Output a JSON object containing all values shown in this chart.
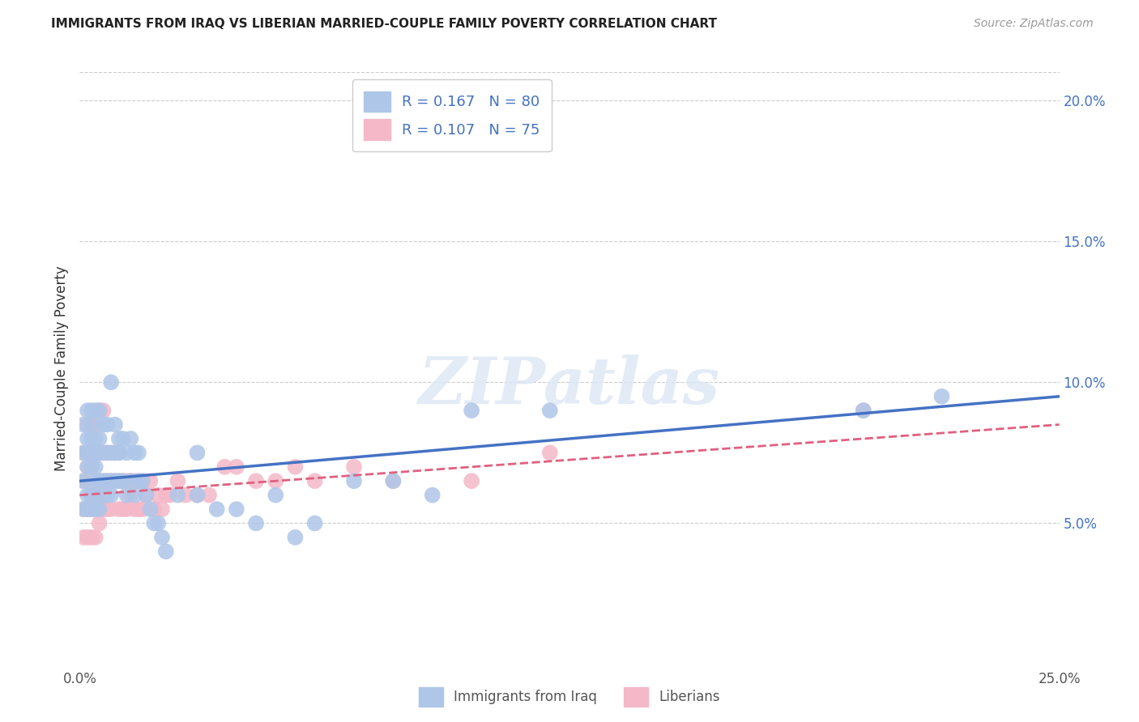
{
  "title": "IMMIGRANTS FROM IRAQ VS LIBERIAN MARRIED-COUPLE FAMILY POVERTY CORRELATION CHART",
  "source": "Source: ZipAtlas.com",
  "ylabel": "Married-Couple Family Poverty",
  "right_yticks": [
    "5.0%",
    "10.0%",
    "15.0%",
    "20.0%"
  ],
  "right_ytick_vals": [
    0.05,
    0.1,
    0.15,
    0.2
  ],
  "xlim": [
    0.0,
    0.25
  ],
  "ylim": [
    0.0,
    0.21
  ],
  "series1_color": "#aec6e8",
  "series2_color": "#f4b8c8",
  "trendline1_color": "#4472c4",
  "trendline2_color": "#e06080",
  "watermark": "ZIPatlas",
  "legend_label1": "R = 0.167   N = 80",
  "legend_label2": "R = 0.107   N = 75",
  "legend_label_bottom1": "Immigrants from Iraq",
  "legend_label_bottom2": "Liberians",
  "iraq_x": [
    0.001,
    0.001,
    0.001,
    0.001,
    0.002,
    0.002,
    0.002,
    0.002,
    0.002,
    0.002,
    0.003,
    0.003,
    0.003,
    0.003,
    0.003,
    0.003,
    0.003,
    0.004,
    0.004,
    0.004,
    0.004,
    0.004,
    0.004,
    0.005,
    0.005,
    0.005,
    0.005,
    0.005,
    0.005,
    0.006,
    0.006,
    0.006,
    0.006,
    0.007,
    0.007,
    0.007,
    0.007,
    0.008,
    0.008,
    0.008,
    0.008,
    0.009,
    0.009,
    0.009,
    0.01,
    0.01,
    0.01,
    0.011,
    0.011,
    0.012,
    0.012,
    0.013,
    0.013,
    0.014,
    0.014,
    0.015,
    0.015,
    0.016,
    0.017,
    0.018,
    0.019,
    0.02,
    0.021,
    0.022,
    0.025,
    0.03,
    0.035,
    0.04,
    0.045,
    0.05,
    0.055,
    0.06,
    0.07,
    0.08,
    0.09,
    0.1,
    0.12,
    0.2,
    0.22,
    0.03
  ],
  "iraq_y": [
    0.055,
    0.065,
    0.075,
    0.085,
    0.055,
    0.06,
    0.07,
    0.075,
    0.08,
    0.09,
    0.055,
    0.06,
    0.07,
    0.075,
    0.08,
    0.085,
    0.09,
    0.055,
    0.065,
    0.07,
    0.075,
    0.08,
    0.09,
    0.055,
    0.06,
    0.065,
    0.075,
    0.08,
    0.09,
    0.06,
    0.065,
    0.075,
    0.085,
    0.06,
    0.065,
    0.075,
    0.085,
    0.06,
    0.065,
    0.075,
    0.1,
    0.065,
    0.075,
    0.085,
    0.065,
    0.075,
    0.08,
    0.065,
    0.08,
    0.06,
    0.075,
    0.065,
    0.08,
    0.06,
    0.075,
    0.065,
    0.075,
    0.065,
    0.06,
    0.055,
    0.05,
    0.05,
    0.045,
    0.04,
    0.06,
    0.06,
    0.055,
    0.055,
    0.05,
    0.06,
    0.045,
    0.05,
    0.065,
    0.065,
    0.06,
    0.09,
    0.09,
    0.09,
    0.095,
    0.075
  ],
  "liberian_x": [
    0.001,
    0.001,
    0.001,
    0.001,
    0.002,
    0.002,
    0.002,
    0.002,
    0.002,
    0.002,
    0.003,
    0.003,
    0.003,
    0.003,
    0.003,
    0.003,
    0.004,
    0.004,
    0.004,
    0.004,
    0.004,
    0.005,
    0.005,
    0.005,
    0.005,
    0.005,
    0.006,
    0.006,
    0.006,
    0.006,
    0.007,
    0.007,
    0.007,
    0.008,
    0.008,
    0.008,
    0.009,
    0.009,
    0.01,
    0.01,
    0.01,
    0.011,
    0.011,
    0.012,
    0.012,
    0.013,
    0.013,
    0.014,
    0.014,
    0.015,
    0.015,
    0.016,
    0.016,
    0.017,
    0.018,
    0.019,
    0.02,
    0.021,
    0.022,
    0.023,
    0.025,
    0.027,
    0.03,
    0.033,
    0.037,
    0.04,
    0.045,
    0.05,
    0.055,
    0.06,
    0.07,
    0.08,
    0.1,
    0.12,
    0.2
  ],
  "liberian_y": [
    0.045,
    0.055,
    0.065,
    0.075,
    0.045,
    0.055,
    0.065,
    0.07,
    0.075,
    0.085,
    0.045,
    0.055,
    0.06,
    0.07,
    0.075,
    0.085,
    0.045,
    0.055,
    0.06,
    0.075,
    0.085,
    0.05,
    0.055,
    0.065,
    0.075,
    0.09,
    0.055,
    0.065,
    0.075,
    0.09,
    0.055,
    0.065,
    0.075,
    0.055,
    0.065,
    0.075,
    0.065,
    0.075,
    0.055,
    0.065,
    0.075,
    0.055,
    0.065,
    0.055,
    0.065,
    0.06,
    0.065,
    0.055,
    0.065,
    0.055,
    0.065,
    0.055,
    0.065,
    0.06,
    0.065,
    0.055,
    0.06,
    0.055,
    0.06,
    0.06,
    0.065,
    0.06,
    0.06,
    0.06,
    0.07,
    0.07,
    0.065,
    0.065,
    0.07,
    0.065,
    0.07,
    0.065,
    0.065,
    0.075,
    0.09
  ],
  "trendline1_x0": 0.0,
  "trendline1_y0": 0.065,
  "trendline1_x1": 0.25,
  "trendline1_y1": 0.095,
  "trendline2_x0": 0.0,
  "trendline2_y0": 0.06,
  "trendline2_x1": 0.25,
  "trendline2_y1": 0.085
}
